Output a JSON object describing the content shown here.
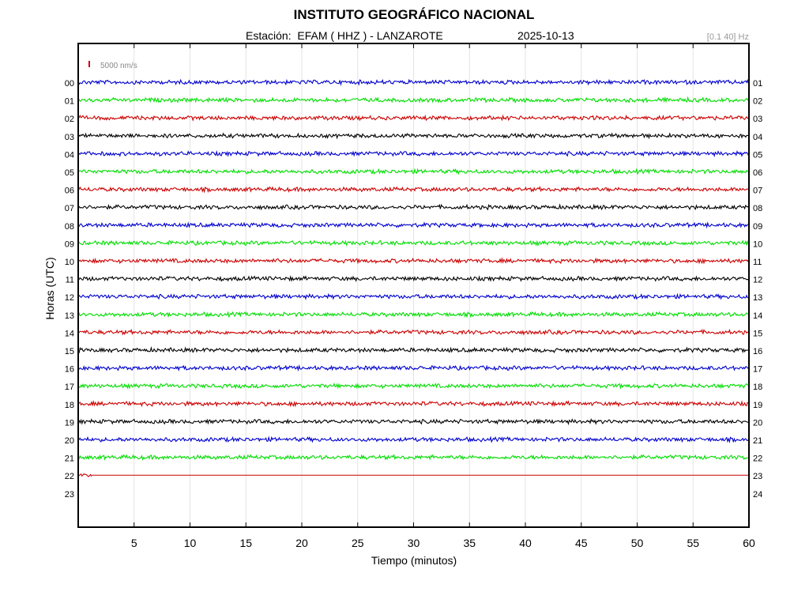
{
  "header": {
    "title": "INSTITUTO GEOGRÁFICO NACIONAL",
    "station": "Estación:  EFAM ( HHZ ) - LANZAROTE",
    "date": "2025-10-13",
    "filter": "[0.1 40] Hz"
  },
  "chart_data": {
    "type": "line",
    "title": "INSTITUTO GEOGRÁFICO NACIONAL",
    "xlabel": "Tiempo (minutos)",
    "ylabel": "Horas (UTC)",
    "xlim": [
      0,
      60
    ],
    "x_ticks": [
      "5",
      "10",
      "15",
      "20",
      "25",
      "30",
      "35",
      "40",
      "45",
      "50",
      "55",
      "60"
    ],
    "left_hour_labels": [
      "00",
      "01",
      "02",
      "03",
      "04",
      "05",
      "06",
      "07",
      "08",
      "09",
      "10",
      "11",
      "12",
      "13",
      "14",
      "15",
      "16",
      "17",
      "18",
      "19",
      "20",
      "21",
      "22",
      "23"
    ],
    "right_hour_labels": [
      "01",
      "02",
      "03",
      "04",
      "05",
      "06",
      "07",
      "08",
      "09",
      "10",
      "11",
      "12",
      "13",
      "14",
      "15",
      "16",
      "17",
      "18",
      "19",
      "20",
      "21",
      "22",
      "23",
      "24"
    ],
    "scale_label": "5000 nm/s",
    "grid": true,
    "trace_colors": [
      "#0000cc",
      "#00dd00",
      "#cc0000",
      "#000000"
    ],
    "series": [
      {
        "hour": "00",
        "end_minute": 60
      },
      {
        "hour": "01",
        "end_minute": 60
      },
      {
        "hour": "02",
        "end_minute": 60
      },
      {
        "hour": "03",
        "end_minute": 60
      },
      {
        "hour": "04",
        "end_minute": 60
      },
      {
        "hour": "05",
        "end_minute": 60
      },
      {
        "hour": "06",
        "end_minute": 60
      },
      {
        "hour": "07",
        "end_minute": 60
      },
      {
        "hour": "08",
        "end_minute": 60
      },
      {
        "hour": "09",
        "end_minute": 60
      },
      {
        "hour": "10",
        "end_minute": 60
      },
      {
        "hour": "11",
        "end_minute": 60
      },
      {
        "hour": "12",
        "end_minute": 60
      },
      {
        "hour": "13",
        "end_minute": 60
      },
      {
        "hour": "14",
        "end_minute": 60
      },
      {
        "hour": "15",
        "end_minute": 60
      },
      {
        "hour": "16",
        "end_minute": 60
      },
      {
        "hour": "17",
        "end_minute": 60
      },
      {
        "hour": "18",
        "end_minute": 60
      },
      {
        "hour": "19",
        "end_minute": 60
      },
      {
        "hour": "20",
        "end_minute": 60
      },
      {
        "hour": "21",
        "end_minute": 60
      },
      {
        "hour": "22",
        "end_minute": 1.2,
        "flat_until": 60
      },
      {
        "hour": "23",
        "end_minute": 0
      }
    ]
  }
}
